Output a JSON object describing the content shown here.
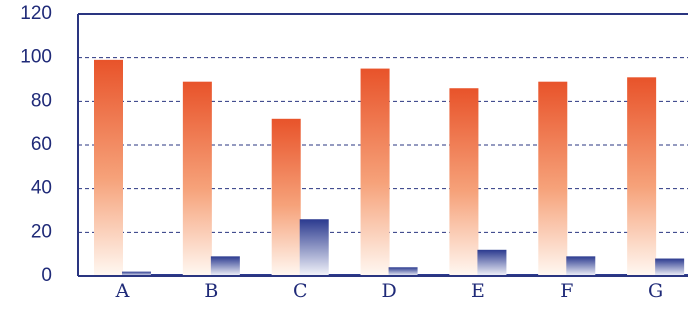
{
  "chart_data": {
    "type": "bar",
    "categories": [
      "A",
      "B",
      "C",
      "D",
      "E",
      "F",
      "G"
    ],
    "series": [
      {
        "values": [
          99,
          89,
          72,
          95,
          86,
          89,
          91
        ]
      },
      {
        "values": [
          2,
          9,
          26,
          4,
          12,
          9,
          8
        ]
      }
    ],
    "ylim": [
      0,
      120
    ],
    "yticks": [
      "0",
      "20",
      "40",
      "60",
      "80",
      "100",
      "120"
    ],
    "grid": "horizontal dashed",
    "colors": {
      "series1_top": "#e8532a",
      "series1_bottom": "#fff8f2",
      "series2_top": "#2b3a8f",
      "series2_bottom": "#f4f5fb",
      "axis": "#2a3580",
      "text": "#1f2a78"
    }
  }
}
